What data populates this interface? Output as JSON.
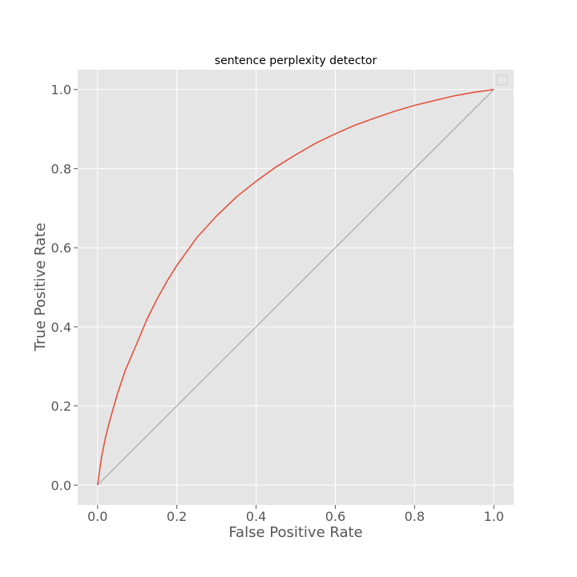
{
  "chart_data": {
    "type": "line",
    "title": "sentence perplexity detector",
    "xlabel": "False Positive Rate",
    "ylabel": "True Positive Rate",
    "xlim": [
      -0.05,
      1.05
    ],
    "ylim": [
      -0.05,
      1.05
    ],
    "xticks": [
      "0.0",
      "0.2",
      "0.4",
      "0.6",
      "0.8",
      "1.0"
    ],
    "yticks": [
      "0.0",
      "0.2",
      "0.4",
      "0.6",
      "0.8",
      "1.0"
    ],
    "grid": true,
    "legend": "top-right",
    "series": [
      {
        "color": "#e24a33",
        "x": [
          0,
          0.01,
          0.02,
          0.03,
          0.05,
          0.07,
          0.1,
          0.125,
          0.15,
          0.175,
          0.2,
          0.25,
          0.3,
          0.35,
          0.4,
          0.45,
          0.5,
          0.55,
          0.6,
          0.65,
          0.7,
          0.75,
          0.8,
          0.85,
          0.9,
          0.95,
          1.0
        ],
        "y": [
          0,
          0.07,
          0.12,
          0.16,
          0.23,
          0.29,
          0.36,
          0.42,
          0.47,
          0.515,
          0.555,
          0.625,
          0.68,
          0.728,
          0.768,
          0.804,
          0.835,
          0.864,
          0.888,
          0.91,
          0.928,
          0.945,
          0.96,
          0.972,
          0.984,
          0.993,
          1.0
        ]
      },
      {
        "color": "#a9a9a9",
        "x": [
          0,
          1
        ],
        "y": [
          0,
          1
        ]
      }
    ]
  }
}
